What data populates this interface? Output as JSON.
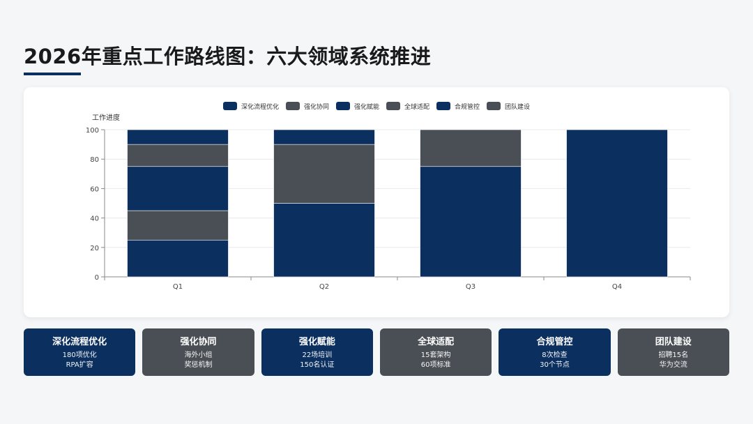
{
  "title": "2026年重点工作路线图：六大领域系统推进",
  "colors": {
    "navy": "#0b2f5f",
    "gray": "#4a4f55"
  },
  "chart_data": {
    "type": "bar",
    "stacked": true,
    "ylabel": "工作进度",
    "ylim": [
      0,
      100
    ],
    "yticks": [
      0,
      20,
      40,
      60,
      80,
      100
    ],
    "categories": [
      "Q1",
      "Q2",
      "Q3",
      "Q4"
    ],
    "legend_position": "top-center",
    "series": [
      {
        "name": "深化流程优化",
        "color": "#0b2f5f",
        "values": [
          25,
          50,
          75,
          100
        ]
      },
      {
        "name": "强化协同",
        "color": "#4a4f55",
        "values": [
          20,
          40,
          25,
          0
        ]
      },
      {
        "name": "强化赋能",
        "color": "#0b2f5f",
        "values": [
          30,
          10,
          0,
          0
        ]
      },
      {
        "name": "全球适配",
        "color": "#4a4f55",
        "values": [
          15,
          0,
          0,
          0
        ]
      },
      {
        "name": "合规管控",
        "color": "#0b2f5f",
        "values": [
          10,
          0,
          0,
          0
        ]
      },
      {
        "name": "团队建设",
        "color": "#4a4f55",
        "values": [
          0,
          0,
          0,
          0
        ]
      }
    ]
  },
  "cards": [
    {
      "title": "深化流程优化",
      "line1": "180项优化",
      "line2": "RPA扩容",
      "color": "#0b2f5f"
    },
    {
      "title": "强化协同",
      "line1": "海外小组",
      "line2": "奖惩机制",
      "color": "#4a4f55"
    },
    {
      "title": "强化赋能",
      "line1": "22场培训",
      "line2": "150名认证",
      "color": "#0b2f5f"
    },
    {
      "title": "全球适配",
      "line1": "15套架构",
      "line2": "60项标准",
      "color": "#4a4f55"
    },
    {
      "title": "合规管控",
      "line1": "8次检查",
      "line2": "30个节点",
      "color": "#0b2f5f"
    },
    {
      "title": "团队建设",
      "line1": "招聘15名",
      "line2": "华为交流",
      "color": "#4a4f55"
    }
  ]
}
